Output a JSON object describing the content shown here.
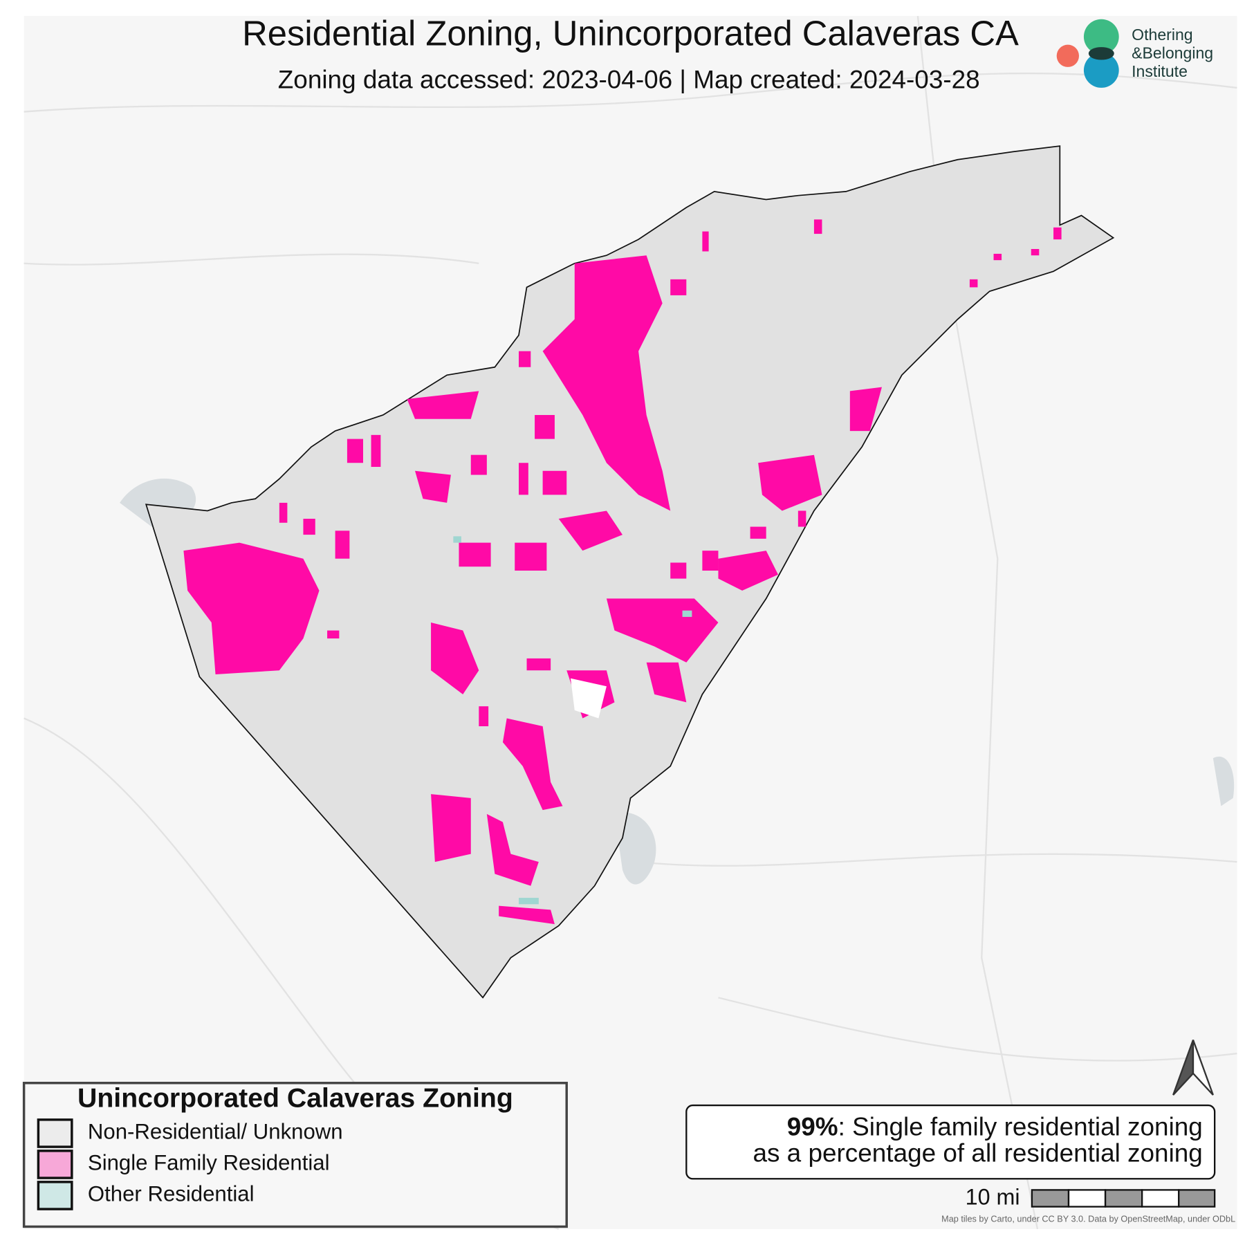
{
  "header": {
    "title": "Residential Zoning, Unincorporated Calaveras CA",
    "subtitle": "Zoning data accessed: 2023-04-06 | Map created: 2024-03-28"
  },
  "logo": {
    "lines": [
      "Othering",
      "&Belonging",
      "Institute"
    ]
  },
  "legend": {
    "title": "Unincorporated Calaveras Zoning",
    "items": [
      {
        "label": "Non-Residential/ Unknown",
        "color": "#ececec"
      },
      {
        "label": "Single Family Residential",
        "color": "#f7a8d8"
      },
      {
        "label": "Other Residential",
        "color": "#cfe8e6"
      }
    ]
  },
  "stat": {
    "highlight": "99%",
    "line1": ": Single family residential zoning",
    "line2": "as a percentage of all residential zoning"
  },
  "scale": {
    "label": "10 mi"
  },
  "attribution": "Map tiles by Carto, under CC BY 3.0. Data by OpenStreetMap, under ODbL"
}
